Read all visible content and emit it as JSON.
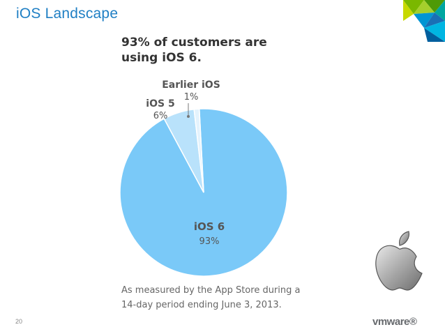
{
  "slide": {
    "title": "iOS Landscape",
    "headline_line1": "93% of customers are",
    "headline_line2": "using iOS 6.",
    "footnote_line1": "As measured by the App Store during a",
    "footnote_line2": "14-day period ending June 3, 2013.",
    "page_number": "20",
    "logo_text": "vmware®"
  },
  "chart_data": {
    "type": "pie",
    "title": "93% of customers are using iOS 6.",
    "slices": [
      {
        "label": "iOS 6",
        "value": 93,
        "display": "93%",
        "color": "#7ac9f8"
      },
      {
        "label": "iOS 5",
        "value": 6,
        "display": "6%",
        "color": "#b9e2fb"
      },
      {
        "label": "Earlier iOS",
        "value": 1,
        "display": "1%",
        "color": "#e4f3fd"
      }
    ],
    "note": "As measured by the App Store during a 14-day period ending June 3, 2013."
  },
  "colors": {
    "title": "#1f7fc4",
    "text": "#555555",
    "vmware_green": "#7ab800",
    "vmware_blue": "#0095d3"
  }
}
